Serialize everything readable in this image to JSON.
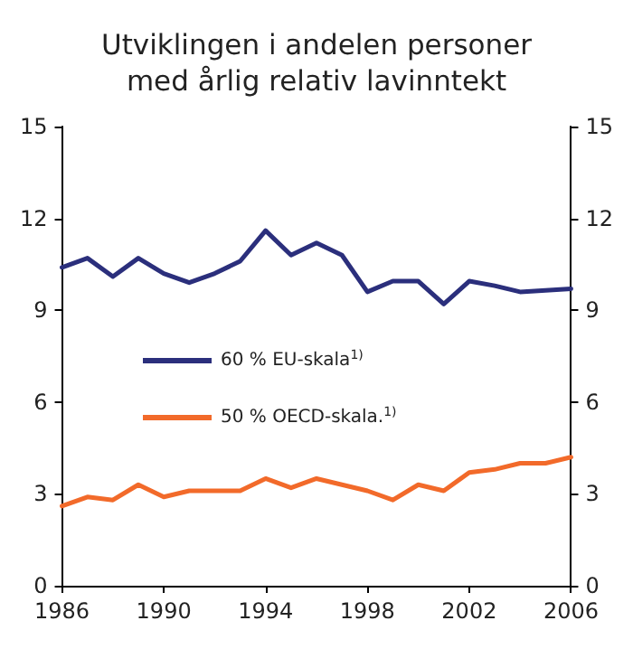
{
  "chart_data": {
    "type": "line",
    "title": "Utviklingen i andelen personer\nmed årlig relativ lavinntekt",
    "x": [
      1986,
      1987,
      1988,
      1989,
      1990,
      1991,
      1992,
      1993,
      1994,
      1995,
      1996,
      1997,
      1998,
      1999,
      2000,
      2001,
      2002,
      2003,
      2004,
      2005,
      2006
    ],
    "series": [
      {
        "name": "60 % EU-skala$^{1)}$",
        "color": "#2b2f7c",
        "values": [
          10.4,
          10.7,
          10.1,
          10.7,
          10.2,
          9.9,
          10.2,
          10.6,
          11.6,
          10.8,
          11.2,
          10.8,
          9.6,
          9.95,
          9.95,
          9.2,
          9.95,
          9.8,
          9.6,
          9.65,
          9.7
        ]
      },
      {
        "name": "50 % OECD-skala.$^{1)}$",
        "color": "#f26a2a",
        "values": [
          2.6,
          2.9,
          2.8,
          3.3,
          2.9,
          3.1,
          3.1,
          3.1,
          3.5,
          3.2,
          3.5,
          3.3,
          3.1,
          2.8,
          3.3,
          3.1,
          3.7,
          3.8,
          4.0,
          4.0,
          4.2
        ]
      }
    ],
    "xlim": [
      1986,
      2006
    ],
    "xticks": [
      1986,
      1990,
      1994,
      1998,
      2002,
      2006
    ],
    "ylim": [
      0,
      15
    ],
    "yticks": [
      0,
      3,
      6,
      9,
      12,
      15
    ],
    "y2lim": [
      0,
      15
    ],
    "y2ticks": [
      0,
      3,
      6,
      9,
      12,
      15
    ],
    "grid": false,
    "legend": "left",
    "marker": "none",
    "line_style": "solid"
  }
}
